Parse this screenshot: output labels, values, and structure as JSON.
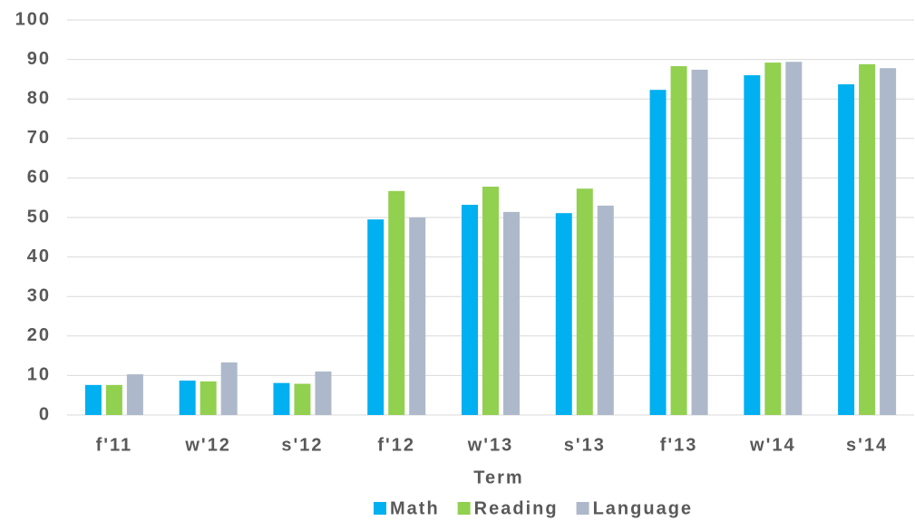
{
  "chart_data": {
    "type": "bar",
    "categories": [
      "f'11",
      "w'12",
      "s'12",
      "f'12",
      "w'13",
      "s'13",
      "f'13",
      "w'14",
      "s'14"
    ],
    "series": [
      {
        "name": "Math",
        "color": "#00b0f0",
        "values": [
          7.6,
          8.7,
          8.1,
          49.5,
          53.2,
          51.1,
          82.3,
          86.0,
          83.7
        ]
      },
      {
        "name": "Reading",
        "color": "#92d050",
        "values": [
          7.6,
          8.5,
          7.9,
          56.7,
          57.8,
          57.3,
          88.3,
          89.2,
          88.8
        ]
      },
      {
        "name": "Language",
        "color": "#adb9ca",
        "values": [
          10.3,
          13.3,
          11.0,
          50.0,
          51.4,
          53.0,
          87.4,
          89.4,
          87.8
        ]
      }
    ],
    "xlabel": "Term",
    "ylim": [
      0,
      100
    ],
    "yticks": [
      0,
      10,
      20,
      30,
      40,
      50,
      60,
      70,
      80,
      90,
      100
    ],
    "grid": true,
    "legend": "bottom"
  }
}
